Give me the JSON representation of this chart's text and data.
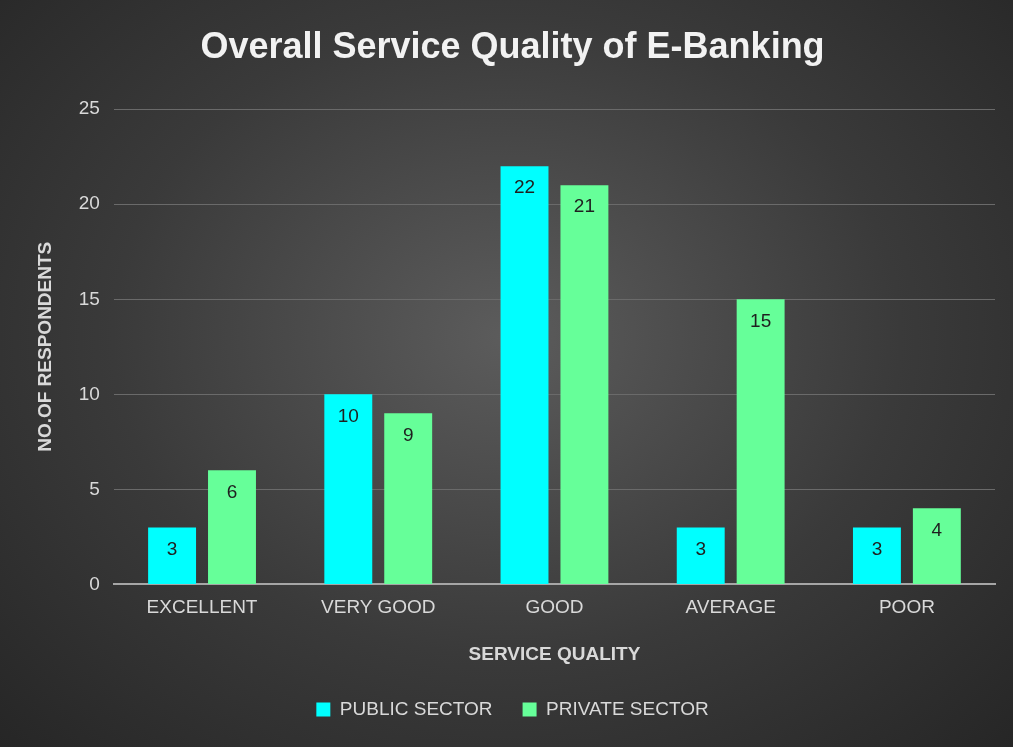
{
  "chart_data": {
    "type": "bar",
    "title": "Overall Service Quality of E-Banking",
    "xlabel": "SERVICE QUALITY",
    "ylabel": "NO.OF RESPONDENTS",
    "categories": [
      "EXCELLENT",
      "VERY GOOD",
      "GOOD",
      "AVERAGE",
      "POOR"
    ],
    "series": [
      {
        "name": "PUBLIC SECTOR",
        "color": "#00ffff",
        "values": [
          3,
          10,
          22,
          3,
          3
        ]
      },
      {
        "name": "PRIVATE SECTOR",
        "color": "#66ff99",
        "values": [
          6,
          9,
          21,
          15,
          4
        ]
      }
    ],
    "ylim": [
      0,
      25
    ],
    "yticks": [
      0,
      5,
      10,
      15,
      20,
      25
    ],
    "grid": "y",
    "legend": "bottom",
    "data_labels": true
  }
}
